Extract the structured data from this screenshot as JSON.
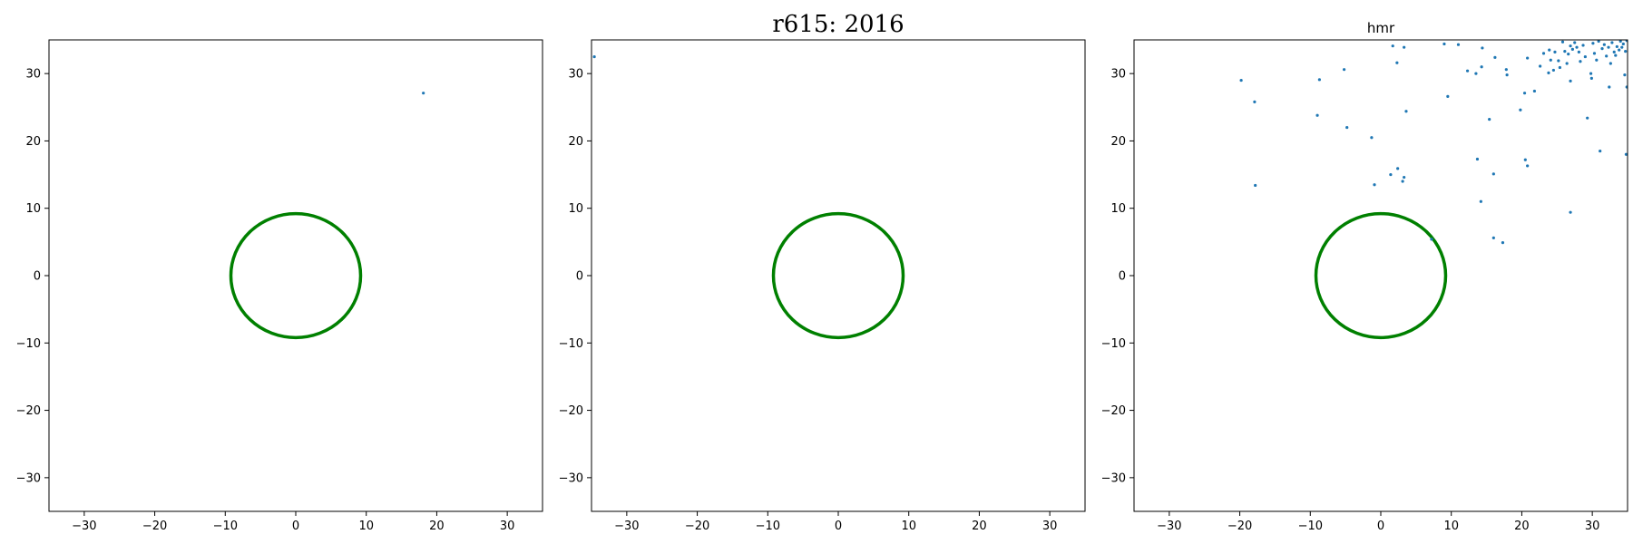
{
  "figure": {
    "suptitle": "r615: 2016"
  },
  "chart_data": [
    {
      "type": "scatter",
      "title": "",
      "xlabel": "",
      "ylabel": "",
      "xlim": [
        -35,
        35
      ],
      "ylim": [
        -35,
        35
      ],
      "xticks": [
        -30,
        -20,
        -10,
        0,
        10,
        20,
        30
      ],
      "yticks": [
        -30,
        -20,
        -10,
        0,
        10,
        20,
        30
      ],
      "grid": false,
      "circle": {
        "center": [
          0,
          0
        ],
        "radius": 9.2,
        "color": "#008000"
      },
      "point_color": "#1f77b4",
      "points": [
        [
          18.1,
          27.1
        ]
      ]
    },
    {
      "type": "scatter",
      "title": "",
      "xlabel": "",
      "ylabel": "",
      "xlim": [
        -35,
        35
      ],
      "ylim": [
        -35,
        35
      ],
      "xticks": [
        -30,
        -20,
        -10,
        0,
        10,
        20,
        30
      ],
      "yticks": [
        -30,
        -20,
        -10,
        0,
        10,
        20,
        30
      ],
      "grid": false,
      "circle": {
        "center": [
          0,
          0
        ],
        "radius": 9.2,
        "color": "#008000"
      },
      "point_color": "#1f77b4",
      "points": [
        [
          -34.6,
          32.5
        ]
      ]
    },
    {
      "type": "scatter",
      "title": "hmr",
      "xlabel": "",
      "ylabel": "",
      "xlim": [
        -35,
        35
      ],
      "ylim": [
        -35,
        35
      ],
      "xticks": [
        -30,
        -20,
        -10,
        0,
        10,
        20,
        30
      ],
      "yticks": [
        -30,
        -20,
        -10,
        0,
        10,
        20,
        30
      ],
      "grid": false,
      "circle": {
        "center": [
          0,
          0
        ],
        "radius": 9.2,
        "color": "#008000"
      },
      "point_color": "#1f77b4",
      "points": [
        [
          -19.8,
          29.0
        ],
        [
          -17.9,
          25.8
        ],
        [
          -17.8,
          13.4
        ],
        [
          -8.7,
          29.1
        ],
        [
          -9.0,
          23.8
        ],
        [
          -5.2,
          30.6
        ],
        [
          -4.8,
          22.0
        ],
        [
          -1.3,
          20.5
        ],
        [
          -0.9,
          13.5
        ],
        [
          1.7,
          34.1
        ],
        [
          2.3,
          31.6
        ],
        [
          3.3,
          33.9
        ],
        [
          1.4,
          15.0
        ],
        [
          2.4,
          15.9
        ],
        [
          3.1,
          14.0
        ],
        [
          3.3,
          14.6
        ],
        [
          3.6,
          24.4
        ],
        [
          9.0,
          34.4
        ],
        [
          11.0,
          34.3
        ],
        [
          9.5,
          26.6
        ],
        [
          14.4,
          33.8
        ],
        [
          12.3,
          30.4
        ],
        [
          13.5,
          30.0
        ],
        [
          14.3,
          31.0
        ],
        [
          16.2,
          32.4
        ],
        [
          17.8,
          30.6
        ],
        [
          17.9,
          29.8
        ],
        [
          13.7,
          17.3
        ],
        [
          15.4,
          23.2
        ],
        [
          16.0,
          15.1
        ],
        [
          14.2,
          11.0
        ],
        [
          16.0,
          5.6
        ],
        [
          17.3,
          4.9
        ],
        [
          19.8,
          24.6
        ],
        [
          20.4,
          27.1
        ],
        [
          20.8,
          32.3
        ],
        [
          20.5,
          17.2
        ],
        [
          20.8,
          16.3
        ],
        [
          21.8,
          27.4
        ],
        [
          22.6,
          31.1
        ],
        [
          23.1,
          33.0
        ],
        [
          23.8,
          30.1
        ],
        [
          23.9,
          33.5
        ],
        [
          24.1,
          32.0
        ],
        [
          24.5,
          30.5
        ],
        [
          24.7,
          33.2
        ],
        [
          25.2,
          31.9
        ],
        [
          25.4,
          30.9
        ],
        [
          25.8,
          34.7
        ],
        [
          26.1,
          33.3
        ],
        [
          26.4,
          31.5
        ],
        [
          26.6,
          32.9
        ],
        [
          26.9,
          34.1
        ],
        [
          26.9,
          28.9
        ],
        [
          27.2,
          33.6
        ],
        [
          27.5,
          34.6
        ],
        [
          27.8,
          33.9
        ],
        [
          28.1,
          33.2
        ],
        [
          28.3,
          31.8
        ],
        [
          28.7,
          34.2
        ],
        [
          29.0,
          32.5
        ],
        [
          29.3,
          23.4
        ],
        [
          29.8,
          30.0
        ],
        [
          29.9,
          29.3
        ],
        [
          30.1,
          34.5
        ],
        [
          30.3,
          33.0
        ],
        [
          30.6,
          32.0
        ],
        [
          30.9,
          34.8
        ],
        [
          31.1,
          18.5
        ],
        [
          31.4,
          33.7
        ],
        [
          31.7,
          34.3
        ],
        [
          32.0,
          32.6
        ],
        [
          32.3,
          33.9
        ],
        [
          32.6,
          31.5
        ],
        [
          32.4,
          28.0
        ],
        [
          32.8,
          34.6
        ],
        [
          33.1,
          33.2
        ],
        [
          33.3,
          32.7
        ],
        [
          33.5,
          34.0
        ],
        [
          33.8,
          33.5
        ],
        [
          34.0,
          34.8
        ],
        [
          34.2,
          33.9
        ],
        [
          34.4,
          34.4
        ],
        [
          34.7,
          33.3
        ],
        [
          34.9,
          34.9
        ],
        [
          34.6,
          29.8
        ],
        [
          34.9,
          28.0
        ],
        [
          34.8,
          18.0
        ],
        [
          26.9,
          9.4
        ],
        [
          7.2,
          5.4
        ]
      ]
    }
  ]
}
